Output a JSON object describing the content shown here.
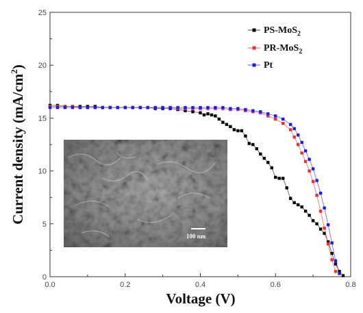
{
  "chart_data": {
    "type": "line",
    "xlabel": "Voltage (V)",
    "ylabel_main": "Current density (mA/cm",
    "ylabel_sup": "2",
    "ylabel_end": ")",
    "xlim": [
      0.0,
      0.8
    ],
    "ylim": [
      0,
      25
    ],
    "x_ticks": [
      "0.0",
      "0.2",
      "0.4",
      "0.6",
      "0.8"
    ],
    "y_ticks": [
      "0",
      "5",
      "10",
      "15",
      "20",
      "25"
    ],
    "legend_position": "top-right",
    "grid": false,
    "series": [
      {
        "name_main": "PS-MoS",
        "name_sub": "2",
        "color": "#000000",
        "points": [
          [
            0.0,
            16.2
          ],
          [
            0.02,
            16.2
          ],
          [
            0.04,
            16.1
          ],
          [
            0.06,
            16.1
          ],
          [
            0.08,
            16.1
          ],
          [
            0.1,
            16.1
          ],
          [
            0.12,
            16.1
          ],
          [
            0.14,
            16.0
          ],
          [
            0.16,
            16.0
          ],
          [
            0.18,
            16.0
          ],
          [
            0.2,
            16.0
          ],
          [
            0.22,
            16.0
          ],
          [
            0.24,
            16.0
          ],
          [
            0.26,
            16.0
          ],
          [
            0.28,
            15.9
          ],
          [
            0.3,
            15.9
          ],
          [
            0.32,
            15.9
          ],
          [
            0.34,
            15.8
          ],
          [
            0.36,
            15.7
          ],
          [
            0.38,
            15.6
          ],
          [
            0.4,
            15.5
          ],
          [
            0.41,
            15.3
          ],
          [
            0.42,
            15.4
          ],
          [
            0.43,
            15.3
          ],
          [
            0.44,
            15.2
          ],
          [
            0.45,
            14.9
          ],
          [
            0.46,
            14.6
          ],
          [
            0.47,
            14.4
          ],
          [
            0.48,
            14.2
          ],
          [
            0.49,
            13.9
          ],
          [
            0.5,
            13.8
          ],
          [
            0.51,
            13.8
          ],
          [
            0.52,
            13.3
          ],
          [
            0.53,
            12.6
          ],
          [
            0.54,
            12.5
          ],
          [
            0.55,
            12.1
          ],
          [
            0.56,
            11.6
          ],
          [
            0.57,
            11.2
          ],
          [
            0.58,
            10.8
          ],
          [
            0.59,
            10.3
          ],
          [
            0.6,
            9.4
          ],
          [
            0.61,
            9.3
          ],
          [
            0.62,
            9.3
          ],
          [
            0.63,
            8.4
          ],
          [
            0.64,
            7.4
          ],
          [
            0.65,
            7.0
          ],
          [
            0.66,
            6.8
          ],
          [
            0.67,
            6.6
          ],
          [
            0.68,
            6.2
          ],
          [
            0.69,
            5.8
          ],
          [
            0.7,
            5.3
          ],
          [
            0.71,
            5.0
          ],
          [
            0.72,
            4.5
          ],
          [
            0.73,
            4.1
          ],
          [
            0.74,
            3.3
          ],
          [
            0.75,
            2.2
          ],
          [
            0.76,
            1.2
          ],
          [
            0.77,
            0.5
          ],
          [
            0.78,
            0.1
          ]
        ]
      },
      {
        "name_main": "PR-MoS",
        "name_sub": "2",
        "color": "#ff2a2a",
        "points": [
          [
            0.0,
            16.1
          ],
          [
            0.02,
            16.1
          ],
          [
            0.04,
            16.1
          ],
          [
            0.06,
            16.1
          ],
          [
            0.08,
            16.0
          ],
          [
            0.1,
            16.0
          ],
          [
            0.12,
            16.0
          ],
          [
            0.14,
            16.0
          ],
          [
            0.16,
            16.0
          ],
          [
            0.18,
            16.0
          ],
          [
            0.2,
            16.0
          ],
          [
            0.22,
            16.0
          ],
          [
            0.24,
            16.0
          ],
          [
            0.26,
            16.0
          ],
          [
            0.28,
            16.0
          ],
          [
            0.3,
            16.0
          ],
          [
            0.32,
            16.0
          ],
          [
            0.34,
            15.9
          ],
          [
            0.36,
            15.9
          ],
          [
            0.38,
            15.9
          ],
          [
            0.4,
            15.9
          ],
          [
            0.42,
            15.9
          ],
          [
            0.44,
            15.9
          ],
          [
            0.46,
            15.9
          ],
          [
            0.48,
            15.8
          ],
          [
            0.5,
            15.8
          ],
          [
            0.52,
            15.7
          ],
          [
            0.54,
            15.6
          ],
          [
            0.56,
            15.5
          ],
          [
            0.58,
            15.2
          ],
          [
            0.6,
            14.9
          ],
          [
            0.62,
            14.5
          ],
          [
            0.64,
            13.9
          ],
          [
            0.65,
            13.2
          ],
          [
            0.66,
            12.5
          ],
          [
            0.67,
            11.7
          ],
          [
            0.68,
            10.9
          ],
          [
            0.69,
            10.0
          ],
          [
            0.7,
            9.0
          ],
          [
            0.71,
            7.7
          ],
          [
            0.72,
            6.2
          ],
          [
            0.73,
            4.6
          ],
          [
            0.74,
            3.1
          ],
          [
            0.75,
            1.6
          ],
          [
            0.76,
            0.5
          ]
        ]
      },
      {
        "name_main": "Pt",
        "name_sub": "",
        "color": "#1a1aff",
        "points": [
          [
            0.0,
            16.0
          ],
          [
            0.02,
            16.0
          ],
          [
            0.04,
            16.0
          ],
          [
            0.06,
            16.0
          ],
          [
            0.08,
            16.0
          ],
          [
            0.1,
            16.0
          ],
          [
            0.12,
            16.0
          ],
          [
            0.14,
            16.0
          ],
          [
            0.16,
            16.0
          ],
          [
            0.18,
            16.0
          ],
          [
            0.2,
            16.0
          ],
          [
            0.22,
            16.0
          ],
          [
            0.24,
            16.0
          ],
          [
            0.26,
            16.0
          ],
          [
            0.28,
            16.0
          ],
          [
            0.3,
            16.0
          ],
          [
            0.32,
            16.0
          ],
          [
            0.34,
            16.0
          ],
          [
            0.36,
            16.0
          ],
          [
            0.38,
            16.0
          ],
          [
            0.4,
            16.0
          ],
          [
            0.42,
            16.0
          ],
          [
            0.44,
            16.0
          ],
          [
            0.46,
            16.0
          ],
          [
            0.48,
            15.9
          ],
          [
            0.5,
            15.9
          ],
          [
            0.52,
            15.8
          ],
          [
            0.54,
            15.7
          ],
          [
            0.56,
            15.6
          ],
          [
            0.58,
            15.4
          ],
          [
            0.6,
            15.2
          ],
          [
            0.62,
            14.9
          ],
          [
            0.64,
            14.4
          ],
          [
            0.65,
            14.0
          ],
          [
            0.66,
            13.4
          ],
          [
            0.67,
            12.7
          ],
          [
            0.68,
            11.9
          ],
          [
            0.69,
            11.1
          ],
          [
            0.7,
            10.2
          ],
          [
            0.71,
            9.1
          ],
          [
            0.72,
            7.9
          ],
          [
            0.73,
            6.5
          ],
          [
            0.74,
            4.9
          ],
          [
            0.75,
            3.2
          ],
          [
            0.76,
            1.5
          ],
          [
            0.77,
            0.3
          ]
        ]
      }
    ],
    "inset": {
      "description_label": "SEM micrograph",
      "scale_label": "100 nm"
    }
  }
}
